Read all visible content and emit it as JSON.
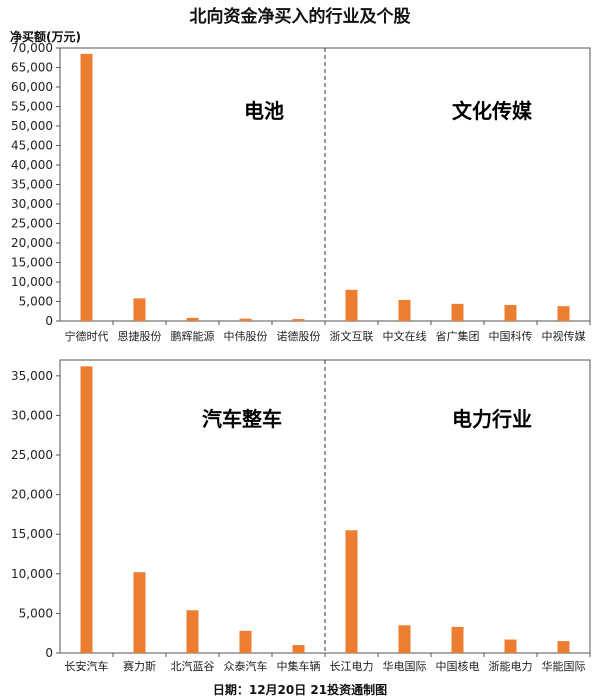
{
  "title": "北向资金净买入的行业及个股",
  "y_unit_label": "净买额(万元)",
  "footer": "日期：12月20日 21投资通制图",
  "bar_color": "#ED7D31",
  "chart_data": [
    {
      "type": "bar",
      "ylim": [
        0,
        70000
      ],
      "yticks": [
        0,
        5000,
        10000,
        15000,
        20000,
        25000,
        30000,
        35000,
        40000,
        45000,
        50000,
        55000,
        60000,
        65000,
        70000
      ],
      "ylabel": "净买额(万元)",
      "categories": [
        "宁德时代",
        "恩捷股份",
        "鹏辉能源",
        "中伟股份",
        "诺德股份",
        "浙文互联",
        "中文在线",
        "省广集团",
        "中国科传",
        "中视传媒"
      ],
      "values": [
        68500,
        5800,
        800,
        600,
        500,
        8000,
        5400,
        4400,
        4100,
        3800
      ],
      "groups": [
        {
          "label": "电池"
        },
        {
          "label": "文化传媒"
        }
      ]
    },
    {
      "type": "bar",
      "ylim": [
        0,
        37000
      ],
      "yticks": [
        0,
        5000,
        10000,
        15000,
        20000,
        25000,
        30000,
        35000
      ],
      "categories": [
        "长安汽车",
        "赛力斯",
        "北汽蓝谷",
        "众泰汽车",
        "中集车辆",
        "长江电力",
        "华电国际",
        "中国核电",
        "浙能电力",
        "华能国际"
      ],
      "values": [
        36200,
        10200,
        5400,
        2800,
        1000,
        15500,
        3500,
        3300,
        1700,
        1500
      ],
      "groups": [
        {
          "label": "汽车整车"
        },
        {
          "label": "电力行业"
        }
      ]
    }
  ]
}
